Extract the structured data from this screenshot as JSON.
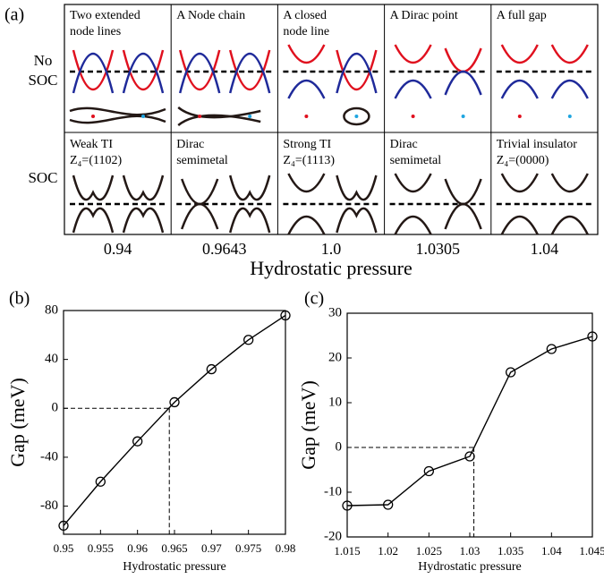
{
  "diagram": {
    "label": "(a)",
    "row_labels": [
      [
        "No",
        "SOC"
      ],
      [
        "SOC"
      ]
    ],
    "cells": [
      [
        [
          "Two extended",
          "node lines"
        ],
        [
          "A Node chain"
        ],
        [
          "A closed",
          "node line"
        ],
        [
          "A Dirac point"
        ],
        [
          "A full gap"
        ]
      ],
      [
        [
          "Weak TI",
          "Z₄=(1102)"
        ],
        [
          "Dirac",
          "semimetal"
        ],
        [
          "Strong TI",
          "Z₄=(1113)"
        ],
        [
          "Dirac",
          "semimetal"
        ],
        [
          "Trivial insulator",
          "Z₄=(0000)"
        ]
      ]
    ],
    "pressures": [
      "0.94",
      "0.9643",
      "1.0",
      "1.0305",
      "1.04"
    ],
    "xlabel": "Hydrostatic pressure"
  },
  "chart_data": [
    {
      "type": "line",
      "label": "(b)",
      "xlabel": "Hydrostatic pressure",
      "ylabel": "Gap (meV)",
      "color": "#000000",
      "x": [
        0.95,
        0.955,
        0.96,
        0.965,
        0.97,
        0.975,
        0.98
      ],
      "values": [
        -96,
        -60,
        -27,
        5,
        32,
        56,
        76
      ],
      "xlim": [
        0.95,
        0.98
      ],
      "ylim": [
        -103,
        80
      ],
      "xticks": [
        0.95,
        0.955,
        0.96,
        0.965,
        0.97,
        0.975,
        0.98
      ],
      "yticks": [
        -80,
        -40,
        0,
        40,
        80
      ],
      "reference": {
        "x": 0.9643,
        "y": 0
      }
    },
    {
      "type": "line",
      "label": "(c)",
      "xlabel": "Hydrostatic pressure",
      "ylabel": "Gap (meV)",
      "color": "#000000",
      "x": [
        1.015,
        1.02,
        1.025,
        1.03,
        1.035,
        1.04,
        1.045
      ],
      "values": [
        -13,
        -12.8,
        -5.3,
        -2,
        16.8,
        22,
        24.8
      ],
      "xlim": [
        1.015,
        1.045
      ],
      "ylim": [
        -20,
        30
      ],
      "xticks": [
        1.015,
        1.02,
        1.025,
        1.03,
        1.035,
        1.04,
        1.045
      ],
      "yticks": [
        -20,
        -10,
        0,
        10,
        20,
        30
      ],
      "reference": {
        "x": 1.0305,
        "y": 0
      }
    }
  ]
}
